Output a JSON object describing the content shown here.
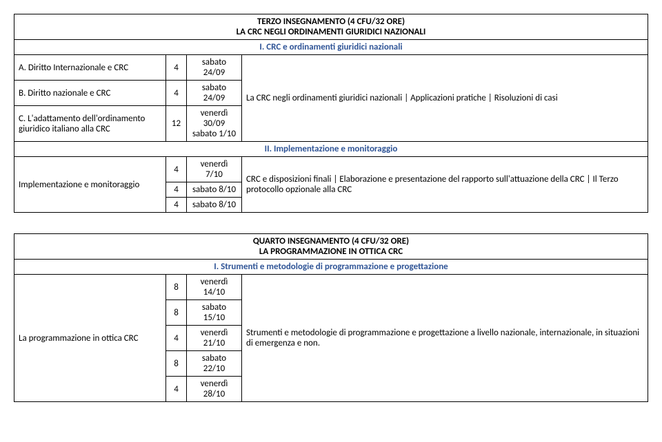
{
  "table1": {
    "header_line1": "TERZO INSEGNAMENTO (4 CFU/32 ORE)",
    "header_line2": "LA CRC NEGLI ORDINAMENTI GIURIDICI NAZIONALI",
    "section1": "I. CRC e ordinamenti giuridici nazionali",
    "r1c1": "A. Diritto Internazionale e CRC",
    "r1c2": "4",
    "r1c3a": "sabato",
    "r1c3b": "24/09",
    "r2c1": "B. Diritto nazionale e CRC",
    "r2c2": "4",
    "r2c3a": "sabato",
    "r2c3b": "24/09",
    "r3c1": "C. L'adattamento dell'ordinamento giuridico italiano alla CRC",
    "r3c2": "12",
    "r3c3a": "venerdì",
    "r3c3b": "30/09",
    "r3c3c": "sabato 1/10",
    "merged_right1": "La CRC negli ordinamenti giuridici nazionali | Applicazioni pratiche | Risoluzioni di casi",
    "section2": "II. Implementazione e monitoraggio",
    "r4c1": "Implementazione e monitoraggio",
    "r4ac2": "4",
    "r4ac3": "venerdì 7/10",
    "r4bc2": "4",
    "r4bc3": "sabato 8/10",
    "r4cc2": "4",
    "r4cc3": "sabato 8/10",
    "merged_right2": "CRC e disposizioni finali | Elaborazione e presentazione del rapporto sull'attuazione della CRC | Il Terzo protocollo opzionale alla CRC"
  },
  "table2": {
    "header_line1": "QUARTO INSEGNAMENTO (4 CFU/32 ORE)",
    "header_line2": "LA PROGRAMMAZIONE IN OTTICA CRC",
    "section1": "I. Strumenti e metodologie di programmazione e progettazione",
    "r1c1": "La programmazione in ottica CRC",
    "r1ac2": "8",
    "r1ac3a": "venerdì",
    "r1ac3b": "14/10",
    "r1bc2": "8",
    "r1bc3a": "sabato",
    "r1bc3b": "15/10",
    "r1cc2": "4",
    "r1cc3a": "venerdì",
    "r1cc3b": "21/10",
    "r1dc2": "8",
    "r1dc3a": "sabato",
    "r1dc3b": "22/10",
    "r1ec2": "4",
    "r1ec3a": "venerdì",
    "r1ec3b": "28/10",
    "merged_right1": "Strumenti e metodologie di programmazione e progettazione a livello nazionale, internazionale, in situazioni di emergenza e non."
  },
  "colors": {
    "section_text": "#2f5496",
    "border": "#000000",
    "background": "#ffffff"
  }
}
